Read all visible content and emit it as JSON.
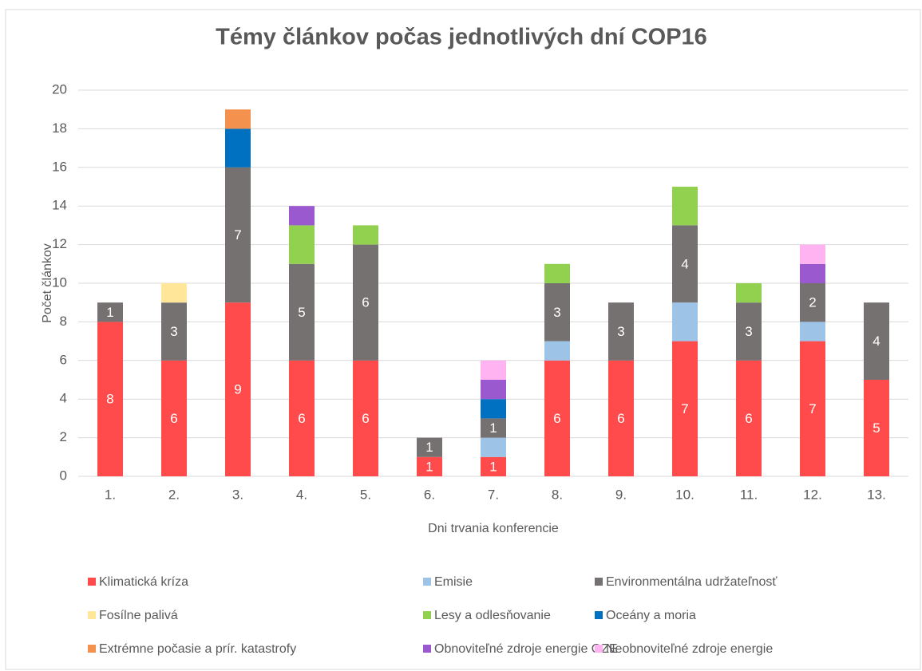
{
  "chart_data": {
    "type": "stacked_bar",
    "title": "Témy článkov počas jednotlivých dní COP16",
    "x_label": "Dni trvania konferencie",
    "y_label": "Počet článkov",
    "categories": [
      "1.",
      "2.",
      "3.",
      "4.",
      "5.",
      "6.",
      "7.",
      "8.",
      "9.",
      "10.",
      "11.",
      "12.",
      "13."
    ],
    "ylim": [
      0,
      20
    ],
    "yticks": [
      0,
      2,
      4,
      6,
      8,
      10,
      12,
      14,
      16,
      18,
      20
    ],
    "grid": true,
    "legend": "bottom",
    "series": [
      {
        "name": "Klimatická kríza",
        "color": "#ff4b4b",
        "data_labels": true,
        "values": [
          8,
          6,
          9,
          6,
          6,
          1,
          1,
          6,
          6,
          7,
          6,
          7,
          5
        ]
      },
      {
        "name": "Emisie",
        "color": "#9dc3e6",
        "data_labels": false,
        "values": [
          null,
          null,
          null,
          null,
          null,
          null,
          1,
          1,
          null,
          2,
          null,
          1,
          null
        ]
      },
      {
        "name": "Environmentálna udržateľnosť",
        "color": "#767171",
        "data_labels": true,
        "values": [
          1,
          3,
          7,
          5,
          6,
          1,
          1,
          3,
          3,
          4,
          3,
          2,
          4
        ]
      },
      {
        "name": "Fosílne palivá",
        "color": "#ffe699",
        "data_labels": false,
        "values": [
          null,
          1,
          null,
          null,
          null,
          null,
          null,
          null,
          null,
          null,
          null,
          null,
          null
        ]
      },
      {
        "name": "Lesy a odlesňovanie",
        "color": "#92d050",
        "data_labels": false,
        "values": [
          null,
          null,
          null,
          2,
          1,
          null,
          null,
          1,
          null,
          2,
          1,
          null,
          null
        ]
      },
      {
        "name": "Oceány a moria",
        "color": "#0070c0",
        "data_labels": false,
        "values": [
          null,
          null,
          2,
          null,
          null,
          null,
          1,
          null,
          null,
          null,
          null,
          null,
          null
        ]
      },
      {
        "name": "Extrémne počasie a prír. katastrofy",
        "color": "#f4914e",
        "data_labels": false,
        "values": [
          null,
          null,
          1,
          null,
          null,
          null,
          null,
          null,
          null,
          null,
          null,
          null,
          null
        ]
      },
      {
        "name": "Obnoviteľné zdroje energie OZE",
        "color": "#9b59d0",
        "data_labels": false,
        "values": [
          null,
          null,
          null,
          1,
          null,
          null,
          1,
          null,
          null,
          null,
          null,
          1,
          null
        ]
      },
      {
        "name": "Neobnoviteľné zdroje energie",
        "color": "#ffb3f0",
        "data_labels": false,
        "values": [
          null,
          null,
          null,
          null,
          null,
          null,
          1,
          null,
          null,
          null,
          null,
          1,
          null
        ]
      }
    ]
  }
}
